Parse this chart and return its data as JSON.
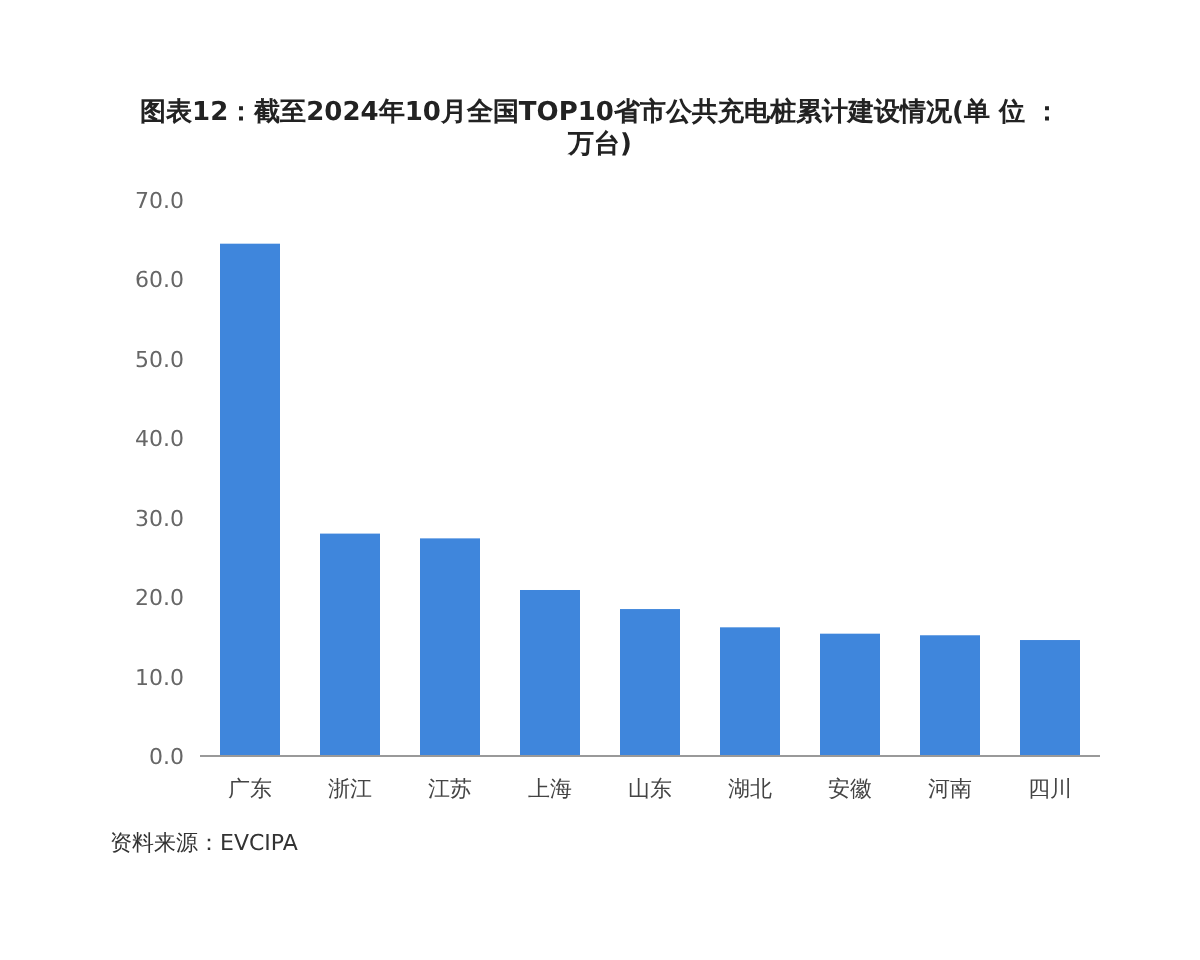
{
  "chart_data": {
    "type": "bar",
    "title": "图表12：截至2024年10月全国TOP10省市公共充电桩累计建设情况(单 位 ：万台)",
    "categories": [
      "广东",
      "浙江",
      "江苏",
      "上海",
      "山东",
      "湖北",
      "安徽",
      "河南",
      "四川"
    ],
    "values": [
      64.5,
      28.0,
      27.4,
      20.9,
      18.5,
      16.2,
      15.4,
      15.2,
      14.6
    ],
    "color": "#3f86dc",
    "ylim": [
      0,
      70
    ],
    "yticks": [
      {
        "value": 0,
        "label": "0.0"
      },
      {
        "value": 10,
        "label": "10.0"
      },
      {
        "value": 20,
        "label": "20.0"
      },
      {
        "value": 30,
        "label": "30.0"
      },
      {
        "value": 40,
        "label": "40.0"
      },
      {
        "value": 50,
        "label": "50.0"
      },
      {
        "value": 60,
        "label": "60.0"
      },
      {
        "value": 70,
        "label": "70.0"
      }
    ],
    "annotations": [
      "资料来源：EVCIPA"
    ]
  }
}
